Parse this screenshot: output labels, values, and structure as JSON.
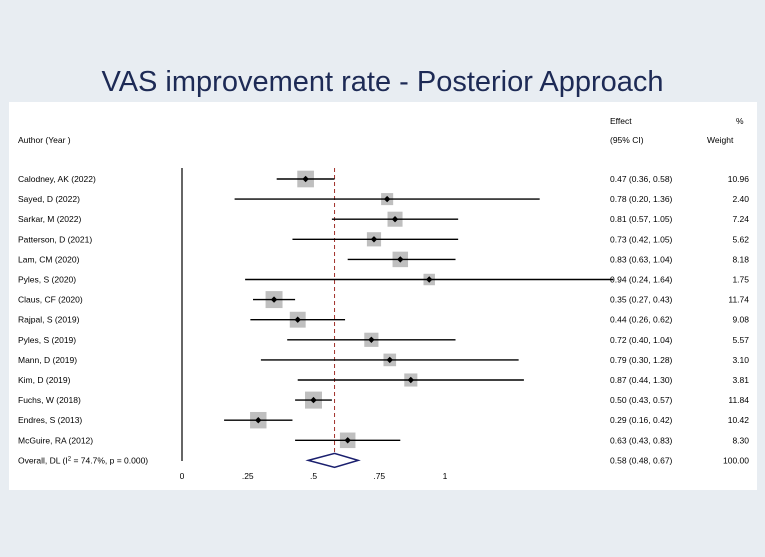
{
  "chart_data": {
    "type": "forest",
    "title": "VAS improvement rate - Posterior Approach",
    "header": {
      "author": "Author (Year )",
      "effect_line1": "Effect",
      "effect_line2": "(95% CI)",
      "weight_line1": "%",
      "weight_line2": "Weight"
    },
    "studies": [
      {
        "label": "Calodney, AK (2022)",
        "effect": 0.47,
        "lo": 0.36,
        "hi": 0.58,
        "ci_text": "0.47 (0.36, 0.58)",
        "weight": "10.96"
      },
      {
        "label": "Sayed, D (2022)",
        "effect": 0.78,
        "lo": 0.2,
        "hi": 1.36,
        "ci_text": "0.78 (0.20, 1.36)",
        "weight": "2.40"
      },
      {
        "label": "Sarkar, M (2022)",
        "effect": 0.81,
        "lo": 0.57,
        "hi": 1.05,
        "ci_text": "0.81 (0.57, 1.05)",
        "weight": "7.24"
      },
      {
        "label": "Patterson, D (2021)",
        "effect": 0.73,
        "lo": 0.42,
        "hi": 1.05,
        "ci_text": "0.73 (0.42, 1.05)",
        "weight": "5.62"
      },
      {
        "label": "Lam, CM (2020)",
        "effect": 0.83,
        "lo": 0.63,
        "hi": 1.04,
        "ci_text": "0.83 (0.63, 1.04)",
        "weight": "8.18"
      },
      {
        "label": "Pyles, S (2020)",
        "effect": 0.94,
        "lo": 0.24,
        "hi": 1.64,
        "ci_text": "0.94 (0.24, 1.64)",
        "weight": "1.75"
      },
      {
        "label": "Claus, CF (2020)",
        "effect": 0.35,
        "lo": 0.27,
        "hi": 0.43,
        "ci_text": "0.35 (0.27, 0.43)",
        "weight": "11.74"
      },
      {
        "label": "Rajpal, S (2019)",
        "effect": 0.44,
        "lo": 0.26,
        "hi": 0.62,
        "ci_text": "0.44 (0.26, 0.62)",
        "weight": "9.08"
      },
      {
        "label": "Pyles, S (2019)",
        "effect": 0.72,
        "lo": 0.4,
        "hi": 1.04,
        "ci_text": "0.72 (0.40, 1.04)",
        "weight": "5.57"
      },
      {
        "label": "Mann, D (2019)",
        "effect": 0.79,
        "lo": 0.3,
        "hi": 1.28,
        "ci_text": "0.79 (0.30, 1.28)",
        "weight": "3.10"
      },
      {
        "label": "Kim, D (2019)",
        "effect": 0.87,
        "lo": 0.44,
        "hi": 1.3,
        "ci_text": "0.87 (0.44, 1.30)",
        "weight": "3.81"
      },
      {
        "label": "Fuchs, W (2018)",
        "effect": 0.5,
        "lo": 0.43,
        "hi": 0.57,
        "ci_text": "0.50 (0.43, 0.57)",
        "weight": "11.84"
      },
      {
        "label": "Endres, S (2013)",
        "effect": 0.29,
        "lo": 0.16,
        "hi": 0.42,
        "ci_text": "0.29 (0.16, 0.42)",
        "weight": "10.42"
      },
      {
        "label": "McGuire, RA (2012)",
        "effect": 0.63,
        "lo": 0.43,
        "hi": 0.83,
        "ci_text": "0.63 (0.43, 0.83)",
        "weight": "8.30"
      }
    ],
    "overall": {
      "label_prefix": "Overall, DL (I",
      "label_sup": "2",
      "label_suffix": " = 74.7%, p = 0.000)",
      "effect": 0.58,
      "lo": 0.48,
      "hi": 0.67,
      "ci_text": "0.58 (0.48, 0.67)",
      "weight": "100.00"
    },
    "x_ticks": [
      {
        "value": 0,
        "label": "0"
      },
      {
        "value": 0.25,
        "label": ".25"
      },
      {
        "value": 0.5,
        "label": ".5"
      },
      {
        "value": 0.75,
        "label": ".75"
      },
      {
        "value": 1,
        "label": "1"
      }
    ],
    "null_line": 0,
    "colors": {
      "title": "#1d2a55",
      "background": "#e8edf2",
      "panel": "#ffffff",
      "box": "#bfbfbf",
      "ci": "#000000",
      "point": "#000000",
      "diamond": "#1a1f6e",
      "overall_line": "#a0302a"
    }
  }
}
